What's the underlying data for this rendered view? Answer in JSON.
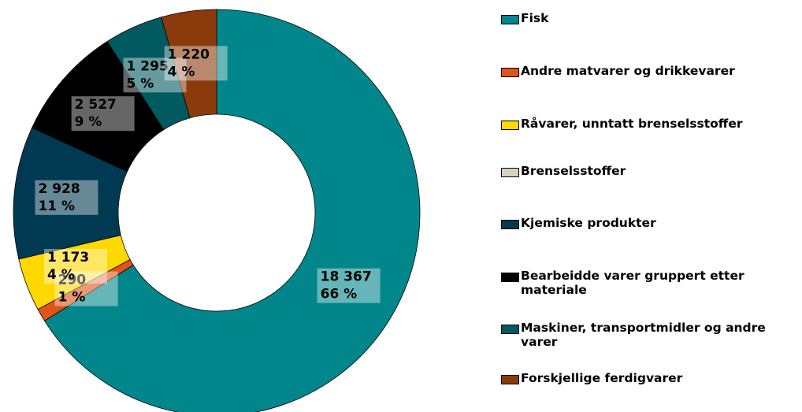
{
  "chart_data": {
    "type": "donut",
    "categories": [
      "Fisk",
      "Andre matvarer og drikkevarer",
      "Råvarer, unntatt brenselsstoffer",
      "Brenselsstoffer",
      "Kjemiske produkter",
      "Bearbeidde varer gruppert etter materiale",
      "Maskiner, transportmidler og andre varer",
      "Forskjellige ferdigvarer"
    ],
    "values": [
      18367,
      290,
      1173,
      0,
      2928,
      2527,
      1295,
      1220
    ],
    "value_labels": [
      "18 367",
      "290",
      "1 173",
      null,
      "2 928",
      "2 527",
      "1 295",
      "1 220"
    ],
    "percent_labels": [
      "66 %",
      "1 %",
      "4 %",
      null,
      "11 %",
      "9 %",
      "5 %",
      "4 %"
    ],
    "colors": [
      "#00868b",
      "#e0541a",
      "#ffd800",
      "#d6d2bc",
      "#003a52",
      "#000000",
      "#005a60",
      "#8b3a0c"
    ],
    "legend": "right"
  }
}
